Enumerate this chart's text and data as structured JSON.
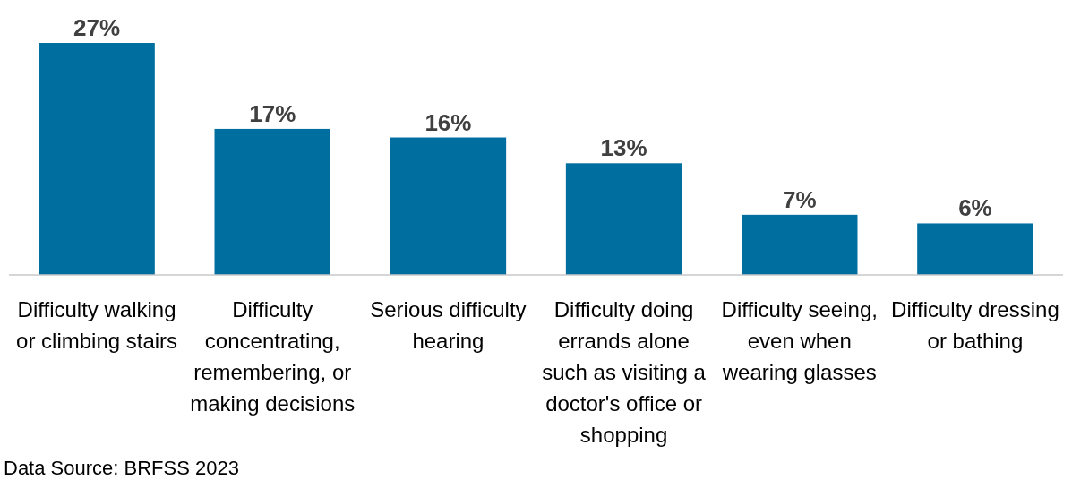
{
  "chart_data": {
    "type": "bar",
    "categories": [
      "Difficulty walking or climbing stairs",
      "Difficulty concentrating, remembering, or making decisions",
      "Serious difficulty hearing",
      "Difficulty doing errands alone such as visiting a doctor's office or shopping",
      "Difficulty seeing, even when wearing glasses",
      "Difficulty dressing or bathing"
    ],
    "values": [
      27,
      17,
      16,
      13,
      7,
      6
    ],
    "value_labels": [
      "27%",
      "17%",
      "16%",
      "13%",
      "7%",
      "6%"
    ],
    "color": "#006fa0",
    "annotations": [
      "Data Source: BRFSS 2023"
    ]
  }
}
